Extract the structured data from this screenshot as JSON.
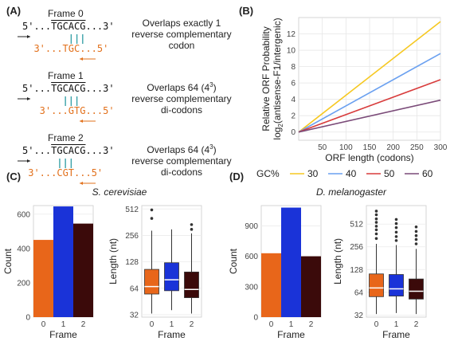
{
  "panelA": {
    "letter": "(A)",
    "frames": [
      {
        "title": "Frame 0",
        "forward_prefix": "5'...",
        "forward_codon": "TGCACG",
        "forward_suffix": "...3'",
        "reverse_prefix": "3'...",
        "reverse_codon": "TGC",
        "reverse_suffix": "...5'",
        "desc_line1": "Overlaps exactly 1",
        "desc_line2": "reverse complementary",
        "desc_line3": "codon"
      },
      {
        "title": "Frame 1",
        "forward_prefix": "5'...",
        "forward_codon": "TGCACG",
        "forward_suffix": "...3'",
        "reverse_prefix": "3'...",
        "reverse_codon": "GTG",
        "reverse_suffix": "...5'",
        "desc_line1": "Overlaps 64 (4",
        "desc_sup": "3",
        "desc_line1_end": ")",
        "desc_line2": "reverse complementary",
        "desc_line3": "di-codons"
      },
      {
        "title": "Frame 2",
        "forward_prefix": "5'...",
        "forward_codon": "TGCACG",
        "forward_suffix": "...3'",
        "reverse_prefix": "3'...",
        "reverse_codon": "CGT",
        "reverse_suffix": "...5'",
        "desc_line1": "Overlaps 64 (4",
        "desc_sup": "3",
        "desc_line1_end": ")",
        "desc_line2": "reverse complementary",
        "desc_line3": "di-codons"
      }
    ],
    "colors": {
      "reverse": "#e2701b",
      "bond": "#3aa2a8",
      "arrow": "#222222"
    }
  },
  "chart_data": [
    {
      "id": "B",
      "panel_letter": "(B)",
      "type": "line",
      "xlabel": "ORF length (codons)",
      "ylabel_line1": "Relative ORF Probability",
      "ylabel_line2_prefix": "log",
      "ylabel_line2_sub": "2",
      "ylabel_line2_suffix": "(antisense-F1/intergenic)",
      "xlim": [
        0,
        300
      ],
      "ylim": [
        -1,
        14
      ],
      "xticks": [
        50,
        100,
        150,
        200,
        250,
        300
      ],
      "yticks": [
        0,
        2,
        4,
        6,
        8,
        10,
        12
      ],
      "grid": true,
      "legend_title": "GC%",
      "legend_position": "bottom",
      "series": [
        {
          "name": "30",
          "color": "#f6c821",
          "x": [
            0,
            300
          ],
          "y": [
            0,
            13.5
          ]
        },
        {
          "name": "40",
          "color": "#6aa0f0",
          "x": [
            0,
            300
          ],
          "y": [
            0,
            9.6
          ]
        },
        {
          "name": "50",
          "color": "#d83c3c",
          "x": [
            0,
            300
          ],
          "y": [
            0,
            6.4
          ]
        },
        {
          "name": "60",
          "color": "#7a4a78",
          "x": [
            0,
            300
          ],
          "y": [
            0,
            3.9
          ]
        }
      ]
    },
    {
      "id": "C-bar",
      "panel_letter": "(C)",
      "species": "S. cerevisiae",
      "type": "bar",
      "categories": [
        "0",
        "1",
        "2"
      ],
      "values": [
        450,
        645,
        545
      ],
      "colors": [
        "#e8661a",
        "#1a33d8",
        "#3b0a0a"
      ],
      "xlabel": "Frame",
      "ylabel": "Count",
      "ylim": [
        0,
        650
      ],
      "yticks": [
        0,
        200,
        400,
        600
      ]
    },
    {
      "id": "C-box",
      "type": "box",
      "scale": "log2",
      "categories": [
        "0",
        "1",
        "2"
      ],
      "colors": [
        "#e8661a",
        "#1a33d8",
        "#3b0a0a"
      ],
      "median_color": "#ffffff",
      "xlabel": "Frame",
      "ylabel": "Length (nt)",
      "ylim": [
        30,
        560
      ],
      "yticks": [
        32,
        64,
        128,
        256,
        512
      ],
      "boxes": [
        {
          "low": 33,
          "q1": 55,
          "median": 67,
          "q3": 105,
          "high": 290,
          "outliers": [
            400,
            500
          ]
        },
        {
          "low": 36,
          "q1": 60,
          "median": 80,
          "q3": 125,
          "high": 300,
          "outliers": []
        },
        {
          "low": 33,
          "q1": 50,
          "median": 62,
          "q3": 98,
          "high": 270,
          "outliers": [
            300,
            340
          ]
        }
      ]
    },
    {
      "id": "D-bar",
      "panel_letter": "(D)",
      "species": "D. melanogaster",
      "type": "bar",
      "categories": [
        "0",
        "1",
        "2"
      ],
      "values": [
        630,
        1080,
        600
      ],
      "colors": [
        "#e8661a",
        "#1a33d8",
        "#3b0a0a"
      ],
      "xlabel": "Frame",
      "ylabel": "Count",
      "ylim": [
        0,
        1100
      ],
      "yticks": [
        0,
        300,
        600,
        900
      ]
    },
    {
      "id": "D-box",
      "type": "box",
      "scale": "log2",
      "categories": [
        "0",
        "1",
        "2"
      ],
      "colors": [
        "#e8661a",
        "#1a33d8",
        "#3b0a0a"
      ],
      "median_color": "#ffffff",
      "xlabel": "Frame",
      "ylabel": "Length (nt)",
      "ylim": [
        30,
        900
      ],
      "yticks": [
        32,
        64,
        128,
        256,
        512
      ],
      "boxes": [
        {
          "low": 33,
          "q1": 56,
          "median": 73,
          "q3": 112,
          "high": 280,
          "outliers": [
            330,
            380,
            430,
            480,
            540,
            600,
            680,
            760
          ]
        },
        {
          "low": 34,
          "q1": 57,
          "median": 71,
          "q3": 110,
          "high": 270,
          "outliers": [
            310,
            350,
            400,
            460,
            520,
            590
          ]
        },
        {
          "low": 33,
          "q1": 52,
          "median": 66,
          "q3": 96,
          "high": 240,
          "outliers": [
            280,
            320,
            360,
            410,
            470
          ]
        }
      ]
    }
  ]
}
